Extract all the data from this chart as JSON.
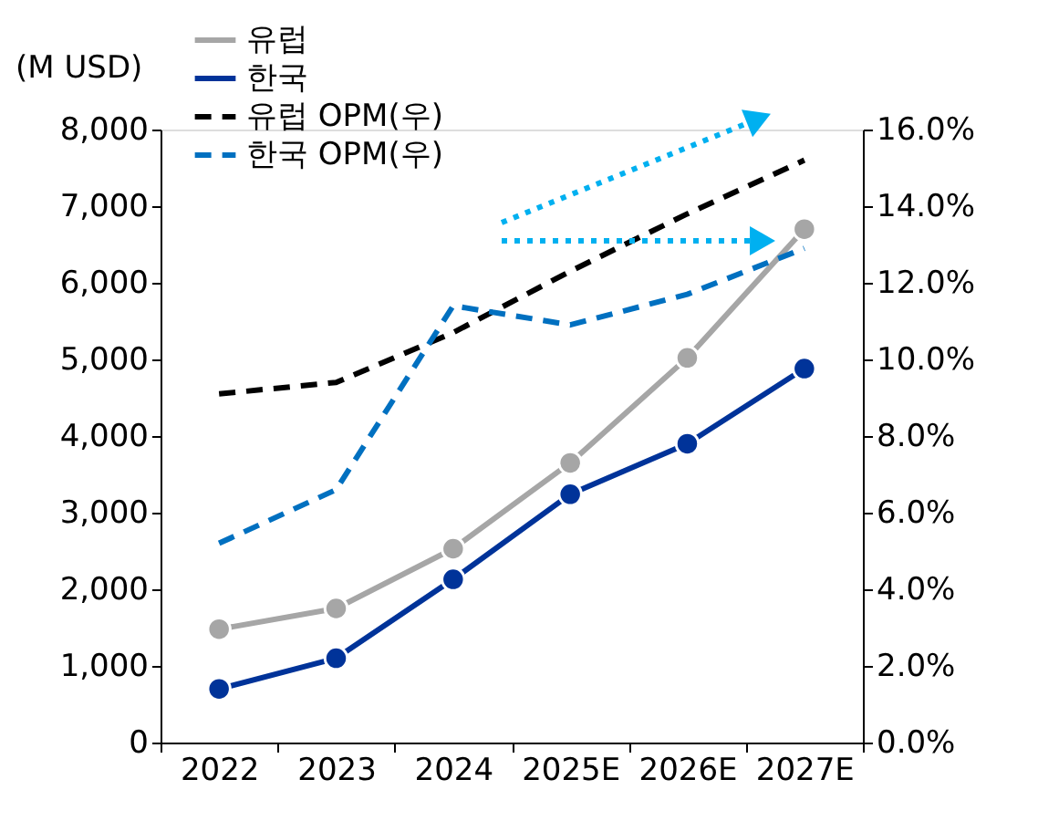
{
  "chart_data": {
    "type": "line",
    "ylabel": "(M USD)",
    "categories": [
      "2022",
      "2023",
      "2024",
      "2025E",
      "2026E",
      "2027E"
    ],
    "series": [
      {
        "name": "유럽",
        "color": "#a6a6a6",
        "marker": "circle",
        "line_style": "solid",
        "values": [
          1480,
          1750,
          2530,
          3650,
          5020,
          6700
        ]
      },
      {
        "name": "한국",
        "color": "#003399",
        "marker": "circle",
        "line_style": "solid",
        "values": [
          700,
          1100,
          2130,
          3240,
          3900,
          4880
        ]
      },
      {
        "name": "유럽 OPM(우)",
        "color": "#000000",
        "marker": "none",
        "line_style": "dashed",
        "axis": "y2",
        "values": [
          9.1,
          9.4,
          10.7,
          12.3,
          13.8,
          15.2
        ]
      },
      {
        "name": "한국 OPM(우)",
        "color": "#0070c0",
        "marker": "none",
        "line_style": "dashed",
        "axis": "y2",
        "values": [
          5.2,
          6.6,
          11.4,
          10.9,
          11.7,
          12.9
        ]
      }
    ],
    "ylim": [
      0,
      8000
    ],
    "yticks": [
      {
        "value": 0,
        "label": "0"
      },
      {
        "value": 1000,
        "label": "1,000"
      },
      {
        "value": 2000,
        "label": "2,000"
      },
      {
        "value": 3000,
        "label": "3,000"
      },
      {
        "value": 4000,
        "label": "4,000"
      },
      {
        "value": 5000,
        "label": "5,000"
      },
      {
        "value": 6000,
        "label": "6,000"
      },
      {
        "value": 7000,
        "label": "7,000"
      },
      {
        "value": 8000,
        "label": "8,000"
      }
    ],
    "y2lim": [
      0,
      16
    ],
    "y2ticks": [
      {
        "value": 0,
        "label": "0.0%"
      },
      {
        "value": 2,
        "label": "2.0%"
      },
      {
        "value": 4,
        "label": "4.0%"
      },
      {
        "value": 6,
        "label": "6.0%"
      },
      {
        "value": 8,
        "label": "8.0%"
      },
      {
        "value": 10,
        "label": "10.0%"
      },
      {
        "value": 12,
        "label": "12.0%"
      },
      {
        "value": 14,
        "label": "14.0%"
      },
      {
        "value": 16,
        "label": "16.0%"
      }
    ],
    "grid": false,
    "legend": "top left"
  }
}
